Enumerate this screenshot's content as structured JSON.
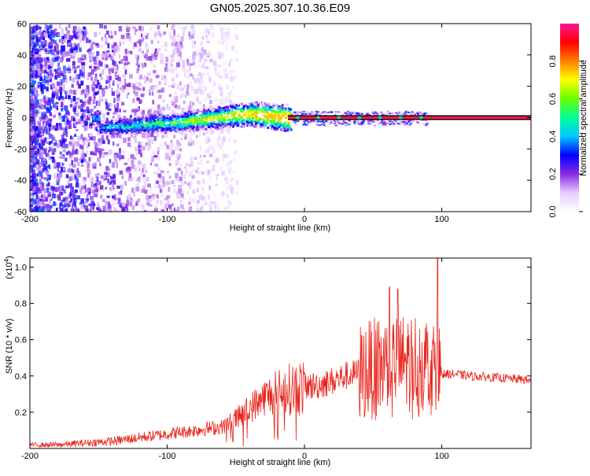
{
  "figure_title": "GN05.2025.307.10.36.E09",
  "chart_data": [
    {
      "type": "heatmap",
      "title": "GN05.2025.307.10.36.E09",
      "xlabel": "Height of straight line (km)",
      "ylabel": "Frequency (Hz)",
      "xlim": [
        -200,
        165
      ],
      "ylim": [
        -60,
        60
      ],
      "xticks": [
        -200,
        -100,
        0,
        100
      ],
      "yticks": [
        -60,
        -40,
        -20,
        0,
        20,
        40,
        60
      ],
      "line_frequency_hz": 0,
      "line_start_km": -12,
      "colorbar": {
        "label": "Normalized spectral amplitude",
        "range": [
          0,
          1
        ],
        "ticks": [
          "0.0",
          "0.2",
          "0.4",
          "0.6",
          "0.8"
        ],
        "colors": [
          "#ffffff",
          "#e6ccff",
          "#8a2be2",
          "#0000ff",
          "#00c8ff",
          "#00ff99",
          "#66ff00",
          "#ffff00",
          "#ff8000",
          "#ff0000",
          "#ff1493"
        ]
      },
      "scatter_band": {
        "description_free": true,
        "points": [
          [
            -150,
            -6
          ],
          [
            -140,
            -5
          ],
          [
            -130,
            -5
          ],
          [
            -120,
            -4
          ],
          [
            -110,
            -3
          ],
          [
            -100,
            -3
          ],
          [
            -90,
            -2
          ],
          [
            -80,
            -1
          ],
          [
            -70,
            0
          ],
          [
            -60,
            1
          ],
          [
            -50,
            2
          ],
          [
            -40,
            3
          ],
          [
            -30,
            2
          ],
          [
            -20,
            1
          ],
          [
            -10,
            0
          ]
        ]
      }
    },
    {
      "type": "line",
      "xlabel": "Height of straight line (km)",
      "ylabel": "SNR (10 * v/v)",
      "scale_label": "(x10",
      "scale_exponent": "4",
      "xlim": [
        -200,
        165
      ],
      "ylim": [
        0,
        1.05
      ],
      "xticks": [
        -200,
        -100,
        0,
        100
      ],
      "yticks": [
        "0.2",
        "0.4",
        "0.6",
        "0.8",
        "1.0"
      ],
      "series": [
        {
          "name": "SNR",
          "color": "#e8241c",
          "x": [
            -200,
            -180,
            -160,
            -140,
            -120,
            -100,
            -80,
            -60,
            -50,
            -40,
            -30,
            -20,
            -10,
            0,
            10,
            20,
            30,
            40,
            50,
            60,
            70,
            80,
            90,
            95,
            100,
            110,
            120,
            140,
            160,
            165
          ],
          "values": [
            0.02,
            0.02,
            0.03,
            0.04,
            0.06,
            0.08,
            0.1,
            0.12,
            0.16,
            0.22,
            0.28,
            0.31,
            0.33,
            0.34,
            0.35,
            0.37,
            0.4,
            0.42,
            0.44,
            0.46,
            0.47,
            0.48,
            0.47,
            0.45,
            0.41,
            0.41,
            0.4,
            0.39,
            0.38,
            0.37
          ]
        }
      ],
      "spike_peaks": [
        {
          "x": 62,
          "value": 0.89
        },
        {
          "x": 68,
          "value": 0.88
        },
        {
          "x": 97,
          "value": 1.05
        }
      ]
    }
  ]
}
